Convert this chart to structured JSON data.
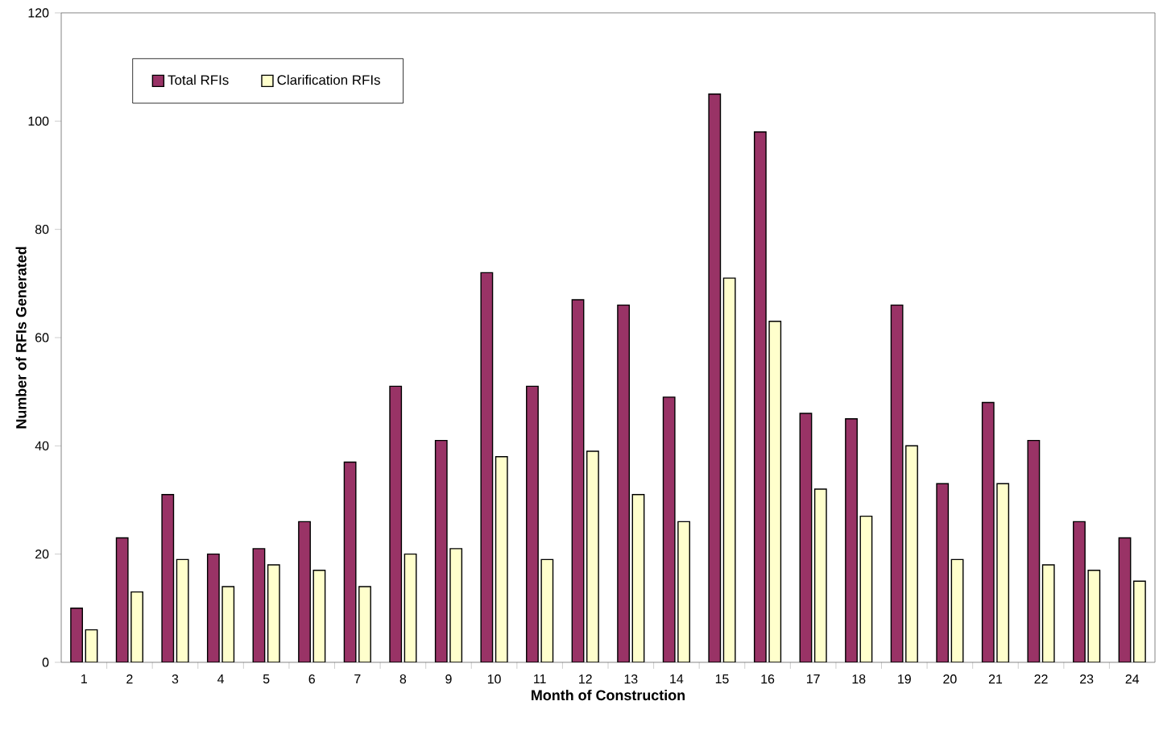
{
  "chart_data": {
    "type": "bar",
    "xlabel": "Month of Construction",
    "ylabel": "Number of RFIs Generated",
    "categories": [
      "1",
      "2",
      "3",
      "4",
      "5",
      "6",
      "7",
      "8",
      "9",
      "10",
      "11",
      "12",
      "13",
      "14",
      "15",
      "16",
      "17",
      "18",
      "19",
      "20",
      "21",
      "22",
      "23",
      "24"
    ],
    "series": [
      {
        "name": "Total RFIs",
        "color": "#993366",
        "values": [
          10,
          23,
          31,
          20,
          21,
          26,
          37,
          51,
          41,
          72,
          51,
          67,
          66,
          49,
          105,
          98,
          46,
          45,
          66,
          33,
          48,
          41,
          26,
          23
        ]
      },
      {
        "name": "Clarification RFIs",
        "color": "#ffffcc",
        "values": [
          6,
          13,
          19,
          14,
          18,
          17,
          14,
          20,
          21,
          38,
          19,
          39,
          31,
          26,
          71,
          63,
          32,
          27,
          40,
          19,
          33,
          18,
          17,
          15
        ]
      }
    ],
    "ylim": [
      0,
      120
    ],
    "yticks": [
      0,
      20,
      40,
      60,
      80,
      100,
      120
    ],
    "grid": false,
    "legend": "top left"
  }
}
